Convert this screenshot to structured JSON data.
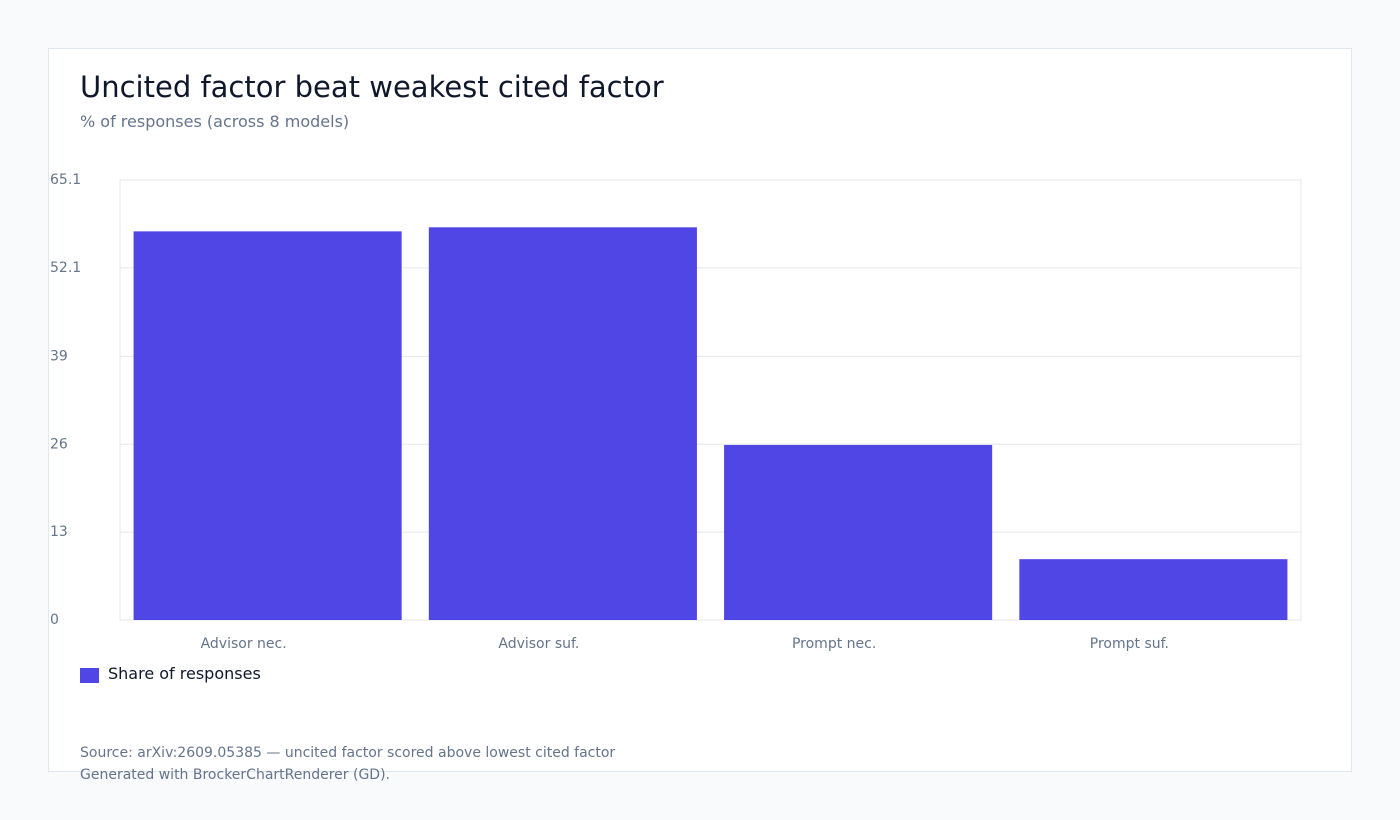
{
  "colors": {
    "bar": "#4f46e5",
    "grid": "#e5e7eb",
    "tick_text": "#64748b"
  },
  "chart_data": {
    "type": "bar",
    "title": "Uncited factor beat weakest cited factor",
    "subtitle": "% of responses (across 8 models)",
    "categories": [
      "Advisor nec.",
      "Advisor suf.",
      "Prompt nec.",
      "Prompt suf."
    ],
    "series": [
      {
        "name": "Share of responses",
        "values": [
          57.5,
          58.1,
          25.9,
          9.0
        ]
      }
    ],
    "ylim": [
      0,
      65.1
    ],
    "yticks": [
      "0",
      "13",
      "26",
      "39",
      "52.1",
      "65.1"
    ],
    "grid": true,
    "legend": "bottom-left"
  },
  "footer": {
    "source": "Source: arXiv:2609.05385 — uncited factor scored above lowest cited factor",
    "generated": "Generated with BrockerChartRenderer (GD)."
  }
}
